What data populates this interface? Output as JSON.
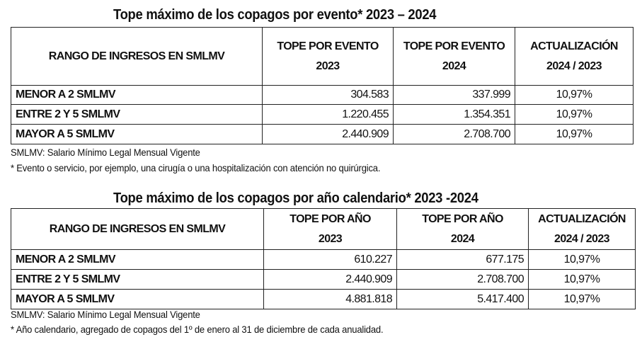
{
  "table1": {
    "title": "Tope máximo de los copagos por evento* 2023 – 2024",
    "headers": [
      "RANGO DE INGRESOS EN SMLMV",
      "TOPE POR EVENTO",
      "2023",
      "TOPE POR EVENTO",
      "2024",
      "ACTUALIZACIÓN",
      "2024 / 2023"
    ],
    "rows": [
      {
        "range": "MENOR A 2 SMLMV",
        "v2023": "304.583",
        "v2024": "337.999",
        "update": "10,97%"
      },
      {
        "range": "ENTRE 2 Y 5 SMLMV",
        "v2023": "1.220.455",
        "v2024": "1.354.351",
        "update": "10,97%"
      },
      {
        "range": "MAYOR A 5 SMLMV",
        "v2023": "2.440.909",
        "v2024": "2.708.700",
        "update": "10,97%"
      }
    ],
    "note1": "SMLMV: Salario Mínimo Legal Mensual Vigente",
    "note2": "* Evento o servicio, por ejemplo, una cirugía o una hospitalización con atención no quirúrgica."
  },
  "table2": {
    "title": "Tope máximo de los copagos por año calendario* 2023 -2024",
    "headers": [
      "RANGO DE INGRESOS EN SMLMV",
      "TOPE POR AÑO",
      "2023",
      "TOPE POR AÑO",
      "2024",
      "ACTUALIZACIÓN",
      "2024 / 2023"
    ],
    "rows": [
      {
        "range": "MENOR A 2 SMLMV",
        "v2023": "610.227",
        "v2024": "677.175",
        "update": "10,97%"
      },
      {
        "range": "ENTRE 2 Y 5 SMLMV",
        "v2023": "2.440.909",
        "v2024": "2.708.700",
        "update": "10,97%"
      },
      {
        "range": "MAYOR A 5 SMLMV",
        "v2023": "4.881.818",
        "v2024": "5.417.400",
        "update": "10,97%"
      }
    ],
    "note1": "SMLMV: Salario Mínimo Legal Mensual Vigente",
    "note2": "* Año calendario, agregado de copagos del 1º de enero al 31 de diciembre de cada anualidad."
  }
}
